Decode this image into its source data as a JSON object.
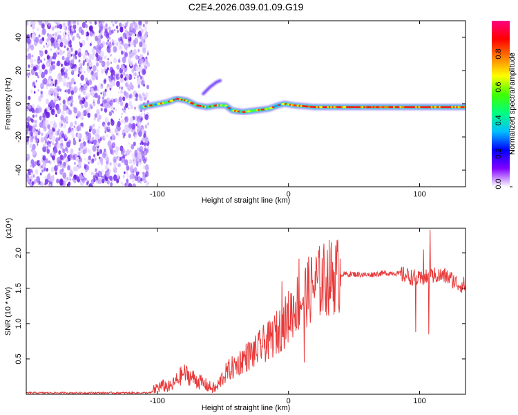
{
  "title": "C2E4.2026.039.01.09.G19",
  "colorbar": {
    "label": "Normalized spectral amplitude",
    "ticks": [
      0.0,
      0.2,
      0.4,
      0.6,
      0.8
    ],
    "range": [
      0,
      1
    ],
    "colors": [
      "#ffffff",
      "#8000ff",
      "#0000ff",
      "#00c0ff",
      "#00ff80",
      "#40ff00",
      "#ffff00",
      "#ff8000",
      "#ff0000",
      "#ff0080"
    ]
  },
  "chart_data": [
    {
      "type": "heatmap",
      "xlabel": "Height of straight line (km)",
      "ylabel": "Frequency (Hz)",
      "xlim": [
        -200,
        135
      ],
      "ylim": [
        -50,
        50
      ],
      "xticks": [
        -100,
        0,
        100
      ],
      "yticks": [
        -40,
        -20,
        0,
        20,
        40
      ],
      "noise_region_x": [
        -200,
        -110
      ],
      "ridge": [
        [
          -112,
          -2
        ],
        [
          -105,
          -1
        ],
        [
          -98,
          0
        ],
        [
          -92,
          1
        ],
        [
          -85,
          3
        ],
        [
          -78,
          2
        ],
        [
          -70,
          -1
        ],
        [
          -62,
          -2
        ],
        [
          -55,
          -1
        ],
        [
          -48,
          -1
        ],
        [
          -43,
          -4
        ],
        [
          -35,
          -5
        ],
        [
          -25,
          -4
        ],
        [
          -15,
          -3
        ],
        [
          -8,
          -1
        ],
        [
          -3,
          0
        ],
        [
          5,
          -1
        ],
        [
          20,
          -2
        ],
        [
          50,
          -2
        ],
        [
          80,
          -2
        ],
        [
          110,
          -2
        ],
        [
          135,
          -2
        ]
      ],
      "branch": [
        [
          -65,
          6
        ],
        [
          -60,
          10
        ],
        [
          -55,
          13
        ],
        [
          -52,
          14
        ]
      ]
    },
    {
      "type": "line",
      "xlabel": "Height of straight line (km)",
      "ylabel": "SNR (10 * v/v)",
      "yunit": "(x10⁴)",
      "xlim": [
        -200,
        135
      ],
      "ylim": [
        0,
        2.35
      ],
      "xticks": [
        -100,
        0,
        100
      ],
      "yticks": [
        0.5,
        1.0,
        1.5,
        2.0
      ],
      "series": [
        {
          "color": "#e83a3a",
          "x": [
            -200,
            -180,
            -160,
            -140,
            -120,
            -105,
            -100,
            -95,
            -90,
            -85,
            -80,
            -75,
            -70,
            -65,
            -60,
            -55,
            -50,
            -45,
            -40,
            -35,
            -30,
            -25,
            -20,
            -15,
            -10,
            -5,
            0,
            5,
            10,
            15,
            20,
            25,
            30,
            35,
            40,
            50,
            60,
            70,
            80,
            90,
            95,
            100,
            105,
            110,
            115,
            120,
            125,
            130,
            135
          ],
          "y": [
            0.02,
            0.02,
            0.02,
            0.02,
            0.02,
            0.02,
            0.1,
            0.12,
            0.1,
            0.2,
            0.3,
            0.25,
            0.2,
            0.15,
            0.1,
            0.08,
            0.25,
            0.35,
            0.4,
            0.5,
            0.55,
            0.6,
            0.7,
            0.75,
            0.85,
            0.95,
            1.1,
            1.25,
            1.35,
            1.45,
            1.55,
            1.6,
            1.65,
            1.67,
            1.7,
            1.7,
            1.69,
            1.71,
            1.72,
            1.68,
            1.65,
            1.62,
            1.65,
            1.68,
            1.68,
            1.67,
            1.62,
            1.55,
            1.55
          ]
        }
      ]
    }
  ]
}
